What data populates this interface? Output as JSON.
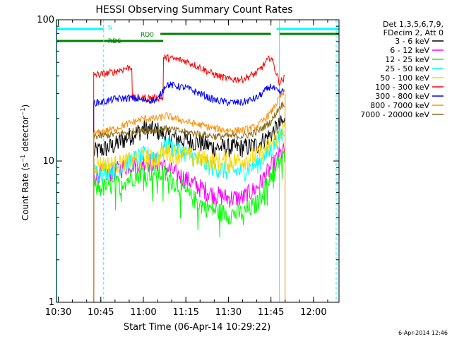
{
  "chart_data": {
    "type": "line",
    "title": "HESSI Observing Summary Count Rates",
    "xlabel": "Start Time (06-Apr-14 10:29:22)",
    "ylabel": "Count Rate (s⁻¹ detector⁻¹)",
    "y_scale": "log",
    "ylim": [
      1,
      100
    ],
    "xlim_minutes_label": "10:29:22 to 12:09",
    "x_ticks": [
      "10:30",
      "10:45",
      "11:00",
      "11:15",
      "11:30",
      "11:45",
      "12:00"
    ],
    "y_ticks": [
      "1",
      "10",
      "100"
    ],
    "grid": false,
    "legend_position": "right",
    "legend_header": [
      "Det 1,3,5,6,7,9,",
      "FDecim 2, Att 0"
    ],
    "footer_date": "6-Apr-2014 12:46",
    "series": [
      {
        "name": "3 - 6 keV",
        "color": "#000000",
        "x": [
          "10:42",
          "10:45",
          "10:50",
          "10:55",
          "11:00",
          "11:05",
          "11:08",
          "11:15",
          "11:20",
          "11:25",
          "11:30",
          "11:35",
          "11:40",
          "11:45",
          "11:48",
          "11:50"
        ],
        "y": [
          11.5,
          12,
          13,
          15,
          17,
          16.5,
          15,
          14,
          13.5,
          12.5,
          12.5,
          12.5,
          13,
          15.5,
          18,
          19
        ]
      },
      {
        "name": "6 - 12 keV",
        "color": "#ff00ff",
        "x": [
          "10:42",
          "10:45",
          "10:50",
          "10:55",
          "11:00",
          "11:05",
          "11:08",
          "11:15",
          "11:20",
          "11:25",
          "11:30",
          "11:35",
          "11:40",
          "11:45",
          "11:48",
          "11:50"
        ],
        "y": [
          8.2,
          8.2,
          8.5,
          9.5,
          10,
          9.8,
          9,
          7.5,
          6.5,
          5.8,
          5.5,
          5.5,
          6.5,
          9,
          11,
          12
        ]
      },
      {
        "name": "12 - 25 keV",
        "color": "#00ff00",
        "x": [
          "10:42",
          "10:45",
          "10:50",
          "10:55",
          "11:00",
          "11:05",
          "11:08",
          "11:15",
          "11:20",
          "11:25",
          "11:30",
          "11:35",
          "11:40",
          "11:45",
          "11:48",
          "11:50"
        ],
        "y": [
          6.5,
          6.5,
          6.8,
          7.5,
          8.5,
          8.2,
          8,
          6,
          5,
          4.5,
          4.2,
          4.3,
          5,
          8,
          10,
          11
        ]
      },
      {
        "name": "25 - 50 keV",
        "color": "#00ffff",
        "x": [
          "10:42",
          "10:45",
          "10:50",
          "10:55",
          "11:00",
          "11:05",
          "11:08",
          "11:15",
          "11:20",
          "11:25",
          "11:30",
          "11:35",
          "11:40",
          "11:45",
          "11:48",
          "11:50"
        ],
        "y": [
          8.5,
          8.5,
          9,
          10,
          11,
          11,
          13,
          11.5,
          10,
          9,
          8.5,
          8.5,
          9.5,
          12,
          15,
          16
        ]
      },
      {
        "name": "50 - 100 keV",
        "color": "#ffd700",
        "x": [
          "10:42",
          "10:45",
          "10:50",
          "10:55",
          "11:00",
          "11:05",
          "11:08",
          "11:15",
          "11:20",
          "11:25",
          "11:30",
          "11:35",
          "11:40",
          "11:45",
          "11:48",
          "11:50"
        ],
        "y": [
          9.5,
          9.5,
          9.5,
          10,
          10.5,
          10.5,
          11.5,
          11,
          10.5,
          10,
          10,
          10.2,
          11,
          13,
          16,
          17
        ]
      },
      {
        "name": "100 - 300 keV",
        "color": "#ff0000",
        "x": [
          "10:42",
          "10:45",
          "10:50",
          "10:55",
          "11:00",
          "11:05",
          "11:08",
          "11:15",
          "11:20",
          "11:25",
          "11:30",
          "11:35",
          "11:40",
          "11:45",
          "11:48",
          "11:50"
        ],
        "y": [
          41,
          41,
          43,
          46,
          null,
          null,
          54,
          51,
          46,
          41,
          38,
          38,
          42,
          55,
          36,
          39
        ]
      },
      {
        "name": "300 - 800 keV",
        "color": "#0000ff",
        "x": [
          "10:42",
          "10:45",
          "10:50",
          "10:55",
          "11:00",
          "11:05",
          "11:08",
          "11:15",
          "11:20",
          "11:25",
          "11:30",
          "11:35",
          "11:40",
          "11:45",
          "11:48",
          "11:50"
        ],
        "y": [
          26,
          26,
          27.5,
          28,
          27,
          27,
          35,
          33,
          30,
          27,
          26,
          26,
          28,
          34,
          30,
          32
        ]
      },
      {
        "name": "800 - 7000 keV",
        "color": "#ff8c00",
        "x": [
          "10:42",
          "10:45",
          "10:50",
          "10:55",
          "11:00",
          "11:05",
          "11:08",
          "11:15",
          "11:20",
          "11:25",
          "11:30",
          "11:35",
          "11:40",
          "11:45",
          "11:48",
          "11:50"
        ],
        "y": [
          15.5,
          16,
          17,
          18.5,
          20,
          20,
          21,
          19,
          18,
          17,
          16.5,
          16.5,
          17.5,
          22,
          28,
          31
        ]
      },
      {
        "name": "7000 - 20000 keV",
        "color": "#8b6914",
        "x": [
          "10:42",
          "10:45",
          "10:50",
          "10:55",
          "11:00",
          "11:05",
          "11:08",
          "11:15",
          "11:20",
          "11:25",
          "11:30",
          "11:35",
          "11:40",
          "11:45",
          "11:48",
          "11:50"
        ],
        "y": [
          15,
          15,
          15.5,
          16,
          16.5,
          16.5,
          17,
          16,
          15.5,
          15,
          15,
          15,
          16,
          19,
          24,
          26
        ]
      }
    ],
    "annotations": [
      {
        "label": "N",
        "color": "#00ffff",
        "intervals": [
          [
            "10:29:22",
            "10:46"
          ],
          [
            "11:47",
            "12:09"
          ]
        ]
      },
      {
        "label": "RD0",
        "color": "#008000",
        "intervals": [
          [
            "11:06",
            "11:45"
          ],
          [
            "11:48",
            "12:09"
          ]
        ]
      },
      {
        "label": "RD6",
        "color": "#008000",
        "intervals": [
          [
            "10:29:22",
            "11:07"
          ]
        ]
      }
    ]
  }
}
